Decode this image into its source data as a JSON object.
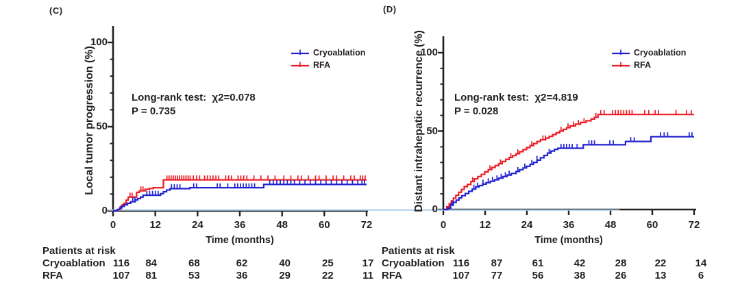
{
  "chart_style": {
    "axis_color": "#231f20",
    "text_color": "#231f20",
    "zero_line_color": "#a8cbe8",
    "background": "#ffffff"
  },
  "chart_data": [
    {
      "type": "line",
      "subtype": "kaplan-meier-step",
      "panel_label": "(C)",
      "ylabel": "Local tumor progression (%)",
      "xlabel": "Time (months)",
      "xlim": [
        0,
        72
      ],
      "ylim": [
        0,
        110
      ],
      "x_ticks": [
        0,
        12,
        24,
        36,
        48,
        60,
        72
      ],
      "y_ticks_major": [
        0,
        50,
        100
      ],
      "y_minor_step": 10,
      "grid": "off",
      "legend_position": "top-right",
      "annotation": {
        "line1": "Long-rank test:  χ2=0.078",
        "line2": "P = 0.735"
      },
      "series": [
        {
          "name": "Cryoablation",
          "color": "#2121d2",
          "step_points": [
            [
              0,
              0
            ],
            [
              1.2,
              0.9
            ],
            [
              1.9,
              1.8
            ],
            [
              2.5,
              2.7
            ],
            [
              3.2,
              3.6
            ],
            [
              4.1,
              4.5
            ],
            [
              5,
              5.4
            ],
            [
              6.3,
              6.5
            ],
            [
              7,
              7.3
            ],
            [
              7.8,
              8.2
            ],
            [
              8.5,
              9.3
            ],
            [
              13.5,
              10.2
            ],
            [
              14.3,
              11.4
            ],
            [
              15.2,
              12.4
            ],
            [
              16.2,
              13.2
            ],
            [
              21.8,
              13.8
            ],
            [
              42.8,
              15.7
            ],
            [
              72,
              15.7
            ]
          ],
          "censor_marks": [
            5.6,
            6.2,
            9.6,
            10.4,
            11.2,
            12,
            12.8,
            16.6,
            17.4,
            18.2,
            19,
            22.9,
            23.7,
            29.6,
            30.4,
            32.6,
            34.6,
            35.4,
            36.2,
            37,
            37.8,
            38.6,
            39.4,
            40.2,
            44.5,
            45.5,
            46.5,
            47.5,
            48.5,
            49.5,
            50.5,
            51.5,
            53,
            54.5,
            56,
            57.5,
            59,
            60.5,
            62,
            63.5,
            65,
            66.5,
            68,
            69.5,
            70.7,
            71.4
          ]
        },
        {
          "name": "RFA",
          "color": "#ec1c24",
          "step_points": [
            [
              0,
              0
            ],
            [
              1.6,
              0.9
            ],
            [
              2.1,
              2.7
            ],
            [
              2.6,
              3.6
            ],
            [
              3.1,
              4.5
            ],
            [
              3.7,
              6.4
            ],
            [
              4.3,
              8.2
            ],
            [
              6.7,
              11
            ],
            [
              7.5,
              11.9
            ],
            [
              9.1,
              12.8
            ],
            [
              10.3,
              13.3
            ],
            [
              11.4,
              13.8
            ],
            [
              14.3,
              18.4
            ],
            [
              72,
              18.4
            ]
          ],
          "censor_marks": [
            4.8,
            5.4,
            7.9,
            8.5,
            15.3,
            15.9,
            16.5,
            17.1,
            17.7,
            18.3,
            18.9,
            19.5,
            20.1,
            20.7,
            21.3,
            21.9,
            22.8,
            23.7,
            24.6,
            26,
            26.8,
            27.6,
            28.4,
            29.2,
            30,
            32,
            32.8,
            33.6,
            35.5,
            36.3,
            37.1,
            38,
            40,
            42,
            44,
            46,
            48.5,
            50.5,
            52.5,
            53.5,
            55.5,
            57.5,
            58.5,
            60.5,
            62.5,
            63.5,
            65.5,
            67.5,
            68.5,
            70.2,
            70.9,
            71.6
          ]
        }
      ],
      "patients_at_risk": {
        "title": "Patients at risk",
        "time_points": [
          0,
          12,
          24,
          36,
          48,
          60,
          72
        ],
        "rows": [
          {
            "label": "Cryoablation",
            "counts": [
              116,
              84,
              68,
              62,
              40,
              25,
              17
            ]
          },
          {
            "label": "RFA",
            "counts": [
              107,
              81,
              53,
              36,
              29,
              22,
              11
            ]
          }
        ]
      }
    },
    {
      "type": "line",
      "subtype": "kaplan-meier-step",
      "panel_label": "(D)",
      "ylabel": "Distant intrahepatic recurrence (%)",
      "xlabel": "Time (months)",
      "xlim": [
        0,
        72
      ],
      "ylim": [
        0,
        110
      ],
      "x_ticks": [
        0,
        12,
        24,
        36,
        48,
        60,
        72
      ],
      "y_ticks_major": [
        0,
        50,
        100
      ],
      "y_minor_step": 10,
      "grid": "off",
      "legend_position": "top-right",
      "annotation": {
        "line1": "Long-rank test:  χ2=4.819",
        "line2": "P = 0.028"
      },
      "series": [
        {
          "name": "Cryoablation",
          "color": "#2121d2",
          "step_points": [
            [
              0,
              0
            ],
            [
              1.3,
              0.9
            ],
            [
              2.1,
              2.8
            ],
            [
              2.9,
              4.6
            ],
            [
              3.7,
              6
            ],
            [
              4.5,
              7.4
            ],
            [
              5.3,
              8.8
            ],
            [
              6.3,
              10.2
            ],
            [
              7.3,
              11.6
            ],
            [
              8.3,
              13
            ],
            [
              9.3,
              14.4
            ],
            [
              10.3,
              15.3
            ],
            [
              11.3,
              16.2
            ],
            [
              12.3,
              17.1
            ],
            [
              13.5,
              18
            ],
            [
              14.7,
              19
            ],
            [
              15.9,
              20
            ],
            [
              17.1,
              21
            ],
            [
              18.3,
              22
            ],
            [
              19.5,
              23
            ],
            [
              20.9,
              24.3
            ],
            [
              21.9,
              25.4
            ],
            [
              22.9,
              26.5
            ],
            [
              23.9,
              27.6
            ],
            [
              24.9,
              28.8
            ],
            [
              25.9,
              30.1
            ],
            [
              26.9,
              31.5
            ],
            [
              27.9,
              33
            ],
            [
              28.9,
              34.5
            ],
            [
              29.9,
              36
            ],
            [
              30.9,
              37.3
            ],
            [
              31.9,
              38.4
            ],
            [
              32.9,
              39.1
            ],
            [
              40.2,
              41.3
            ],
            [
              52.3,
              43.4
            ],
            [
              59.6,
              46.4
            ],
            [
              72,
              46.4
            ]
          ],
          "censor_marks": [
            2.5,
            8.8,
            9.8,
            11.4,
            12.9,
            14.1,
            15.4,
            16.6,
            17.8,
            18.9,
            21.4,
            23.4,
            25.4,
            26.9,
            30.4,
            33.8,
            34.6,
            35.4,
            36.2,
            37,
            38.4,
            41.8,
            42.6,
            43.4,
            47.8,
            48.8,
            53.8,
            54.8,
            62.4,
            63.4,
            64.4,
            70.6,
            71.4
          ]
        },
        {
          "name": "RFA",
          "color": "#ec1c24",
          "step_points": [
            [
              0,
              0
            ],
            [
              1,
              1.8
            ],
            [
              1.7,
              3.7
            ],
            [
              2.3,
              5.5
            ],
            [
              2.9,
              7.3
            ],
            [
              3.6,
              9.1
            ],
            [
              4.4,
              11
            ],
            [
              5.2,
              12.8
            ],
            [
              6,
              14.6
            ],
            [
              6.9,
              16
            ],
            [
              7.9,
              17.8
            ],
            [
              8.9,
              19.6
            ],
            [
              9.9,
              21
            ],
            [
              10.9,
              22.4
            ],
            [
              11.9,
              24
            ],
            [
              12.9,
              25.4
            ],
            [
              13.9,
              26.8
            ],
            [
              14.9,
              28
            ],
            [
              15.9,
              29.2
            ],
            [
              16.9,
              30.6
            ],
            [
              17.9,
              32
            ],
            [
              18.9,
              33.2
            ],
            [
              19.9,
              34.4
            ],
            [
              20.9,
              35.6
            ],
            [
              21.9,
              36.9
            ],
            [
              22.9,
              38.2
            ],
            [
              23.9,
              39.5
            ],
            [
              24.9,
              40.8
            ],
            [
              25.9,
              42.1
            ],
            [
              26.9,
              43.4
            ],
            [
              27.9,
              44.5
            ],
            [
              29.4,
              45.6
            ],
            [
              30.4,
              46.7
            ],
            [
              31.4,
              47.8
            ],
            [
              32.4,
              48.9
            ],
            [
              33.4,
              50
            ],
            [
              34.4,
              51.1
            ],
            [
              35.4,
              52.2
            ],
            [
              36.4,
              53.3
            ],
            [
              37.9,
              54.4
            ],
            [
              39.4,
              55.5
            ],
            [
              41,
              56.6
            ],
            [
              42.4,
              57.7
            ],
            [
              43.4,
              58.8
            ],
            [
              44.4,
              60.6
            ],
            [
              72,
              60.6
            ]
          ],
          "censor_marks": [
            8.4,
            13.4,
            16.4,
            19.4,
            21.4,
            25.4,
            28.6,
            29.3,
            33.8,
            35.8,
            37.4,
            38.8,
            40.4,
            43.8,
            45.2,
            46.2,
            48.6,
            49.4,
            50.2,
            51,
            51.8,
            52.6,
            53.4,
            54.2,
            57.8,
            59,
            60.8,
            61.8,
            66.8,
            69.8,
            71.2
          ]
        }
      ],
      "patients_at_risk": {
        "title": "Patients at risk",
        "time_points": [
          0,
          12,
          24,
          36,
          48,
          60,
          72
        ],
        "rows": [
          {
            "label": "Cryoablation",
            "counts": [
              116,
              87,
              61,
              42,
              28,
              22,
              14
            ]
          },
          {
            "label": "RFA",
            "counts": [
              107,
              77,
              56,
              38,
              26,
              13,
              6
            ]
          }
        ]
      }
    }
  ]
}
